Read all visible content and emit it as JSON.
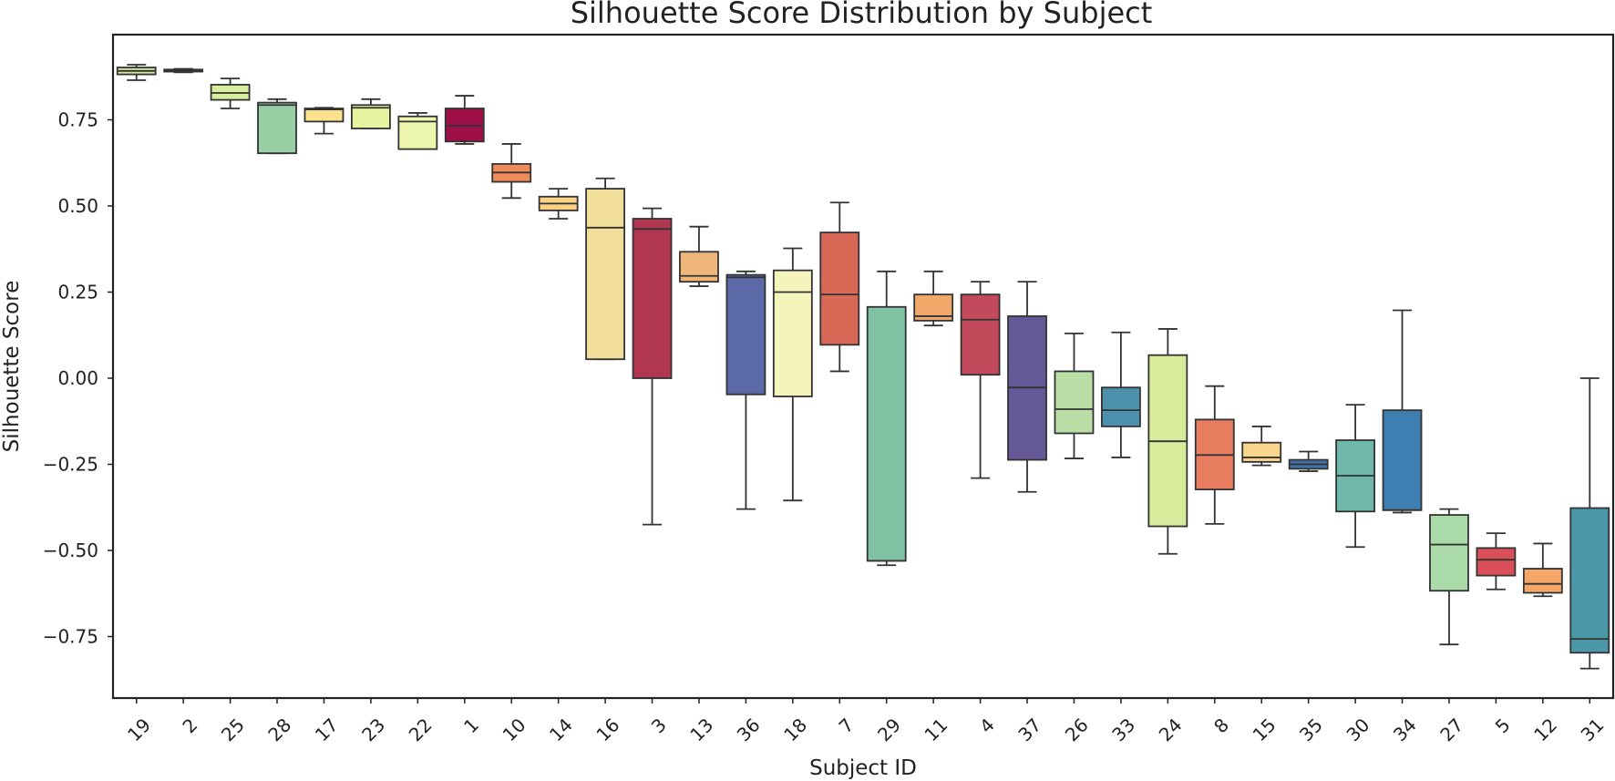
{
  "chart_data": {
    "type": "box",
    "title": "Silhouette Score Distribution by Subject",
    "xlabel": "Subject ID",
    "ylabel": "Silhouette Score",
    "ylim": [
      -0.92,
      1.0
    ],
    "yticks": [
      0.75,
      0.5,
      0.25,
      0.0,
      -0.25,
      -0.5,
      -0.75
    ],
    "ytick_labels": [
      "0.75",
      "0.50",
      "0.25",
      "0.00",
      "−0.25",
      "−0.50",
      "−0.75"
    ],
    "grid": false,
    "legend": "none",
    "categories": [
      "19",
      "2",
      "25",
      "28",
      "17",
      "23",
      "22",
      "1",
      "10",
      "14",
      "16",
      "3",
      "13",
      "36",
      "18",
      "7",
      "29",
      "11",
      "4",
      "37",
      "26",
      "33",
      "24",
      "8",
      "15",
      "35",
      "30",
      "34",
      "27",
      "5",
      "12",
      "31"
    ],
    "boxes": [
      {
        "id": "19",
        "whislo": 0.865,
        "q1": 0.882,
        "med": 0.892,
        "q3": 0.902,
        "whishi": 0.91,
        "color": "#cfe59a"
      },
      {
        "id": "2",
        "whislo": 0.888,
        "q1": 0.89,
        "med": 0.893,
        "q3": 0.896,
        "whishi": 0.898,
        "color": "#dff1a0"
      },
      {
        "id": "25",
        "whislo": 0.783,
        "q1": 0.808,
        "med": 0.828,
        "q3": 0.852,
        "whishi": 0.87,
        "color": "#d8ee9c"
      },
      {
        "id": "28",
        "whislo": 0.653,
        "q1": 0.653,
        "med": 0.793,
        "q3": 0.8,
        "whishi": 0.81,
        "color": "#99cfa4"
      },
      {
        "id": "17",
        "whislo": 0.71,
        "q1": 0.745,
        "med": 0.78,
        "q3": 0.783,
        "whishi": 0.785,
        "color": "#fbe18c"
      },
      {
        "id": "23",
        "whislo": 0.725,
        "q1": 0.725,
        "med": 0.785,
        "q3": 0.793,
        "whishi": 0.81,
        "color": "#e6f4a0"
      },
      {
        "id": "22",
        "whislo": 0.665,
        "q1": 0.665,
        "med": 0.745,
        "q3": 0.76,
        "whishi": 0.77,
        "color": "#ecf7ad"
      },
      {
        "id": "1",
        "whislo": 0.68,
        "q1": 0.687,
        "med": 0.733,
        "q3": 0.783,
        "whishi": 0.82,
        "color": "#9e0e47"
      },
      {
        "id": "10",
        "whislo": 0.523,
        "q1": 0.57,
        "med": 0.597,
        "q3": 0.622,
        "whishi": 0.68,
        "color": "#f08c5a"
      },
      {
        "id": "14",
        "whislo": 0.463,
        "q1": 0.487,
        "med": 0.507,
        "q3": 0.527,
        "whishi": 0.55,
        "color": "#fbd184"
      },
      {
        "id": "16",
        "whislo": 0.055,
        "q1": 0.055,
        "med": 0.437,
        "q3": 0.55,
        "whishi": 0.58,
        "color": "#f2de9b"
      },
      {
        "id": "3",
        "whislo": -0.425,
        "q1": 0.0,
        "med": 0.433,
        "q3": 0.463,
        "whishi": 0.493,
        "color": "#b0374f"
      },
      {
        "id": "13",
        "whislo": 0.267,
        "q1": 0.28,
        "med": 0.297,
        "q3": 0.367,
        "whishi": 0.44,
        "color": "#f0b679"
      },
      {
        "id": "36",
        "whislo": -0.38,
        "q1": -0.047,
        "med": 0.293,
        "q3": 0.3,
        "whishi": 0.31,
        "color": "#5b6aa6"
      },
      {
        "id": "18",
        "whislo": -0.355,
        "q1": -0.053,
        "med": 0.25,
        "q3": 0.313,
        "whishi": 0.377,
        "color": "#f6f4bd"
      },
      {
        "id": "7",
        "whislo": 0.02,
        "q1": 0.097,
        "med": 0.243,
        "q3": 0.423,
        "whishi": 0.51,
        "color": "#da6857"
      },
      {
        "id": "29",
        "whislo": -0.543,
        "q1": -0.53,
        "med": -0.53,
        "q3": 0.207,
        "whishi": 0.31,
        "color": "#80c3a4"
      },
      {
        "id": "11",
        "whislo": 0.153,
        "q1": 0.167,
        "med": 0.18,
        "q3": 0.243,
        "whishi": 0.31,
        "color": "#f0a96b"
      },
      {
        "id": "4",
        "whislo": -0.29,
        "q1": 0.01,
        "med": 0.17,
        "q3": 0.243,
        "whishi": 0.28,
        "color": "#c34a5a"
      },
      {
        "id": "37",
        "whislo": -0.33,
        "q1": -0.237,
        "med": -0.027,
        "q3": 0.18,
        "whishi": 0.28,
        "color": "#665997"
      },
      {
        "id": "26",
        "whislo": -0.233,
        "q1": -0.16,
        "med": -0.09,
        "q3": 0.02,
        "whishi": 0.13,
        "color": "#b9dfa6"
      },
      {
        "id": "33",
        "whislo": -0.23,
        "q1": -0.14,
        "med": -0.093,
        "q3": -0.027,
        "whishi": 0.133,
        "color": "#4c90ab"
      },
      {
        "id": "24",
        "whislo": -0.51,
        "q1": -0.43,
        "med": -0.183,
        "q3": 0.067,
        "whishi": 0.143,
        "color": "#d8eb9c"
      },
      {
        "id": "8",
        "whislo": -0.423,
        "q1": -0.323,
        "med": -0.223,
        "q3": -0.12,
        "whishi": -0.023,
        "color": "#e77c5e"
      },
      {
        "id": "15",
        "whislo": -0.253,
        "q1": -0.243,
        "med": -0.23,
        "q3": -0.187,
        "whishi": -0.14,
        "color": "#f6d58c"
      },
      {
        "id": "35",
        "whislo": -0.27,
        "q1": -0.263,
        "med": -0.25,
        "q3": -0.237,
        "whishi": -0.213,
        "color": "#4471a8"
      },
      {
        "id": "30",
        "whislo": -0.49,
        "q1": -0.387,
        "med": -0.283,
        "q3": -0.18,
        "whishi": -0.077,
        "color": "#6fb7a8"
      },
      {
        "id": "34",
        "whislo": -0.39,
        "q1": -0.383,
        "med": -0.383,
        "q3": -0.093,
        "whishi": 0.197,
        "color": "#3f7eb0"
      },
      {
        "id": "27",
        "whislo": -0.773,
        "q1": -0.617,
        "med": -0.483,
        "q3": -0.397,
        "whishi": -0.38,
        "color": "#aadaa8"
      },
      {
        "id": "5",
        "whislo": -0.613,
        "q1": -0.573,
        "med": -0.527,
        "q3": -0.493,
        "whishi": -0.45,
        "color": "#da4f5a"
      },
      {
        "id": "12",
        "whislo": -0.633,
        "q1": -0.623,
        "med": -0.597,
        "q3": -0.553,
        "whishi": -0.48,
        "color": "#f5a668"
      },
      {
        "id": "31",
        "whislo": -0.843,
        "q1": -0.797,
        "med": -0.757,
        "q3": -0.377,
        "whishi": 0.0,
        "color": "#4b99a8"
      }
    ]
  }
}
